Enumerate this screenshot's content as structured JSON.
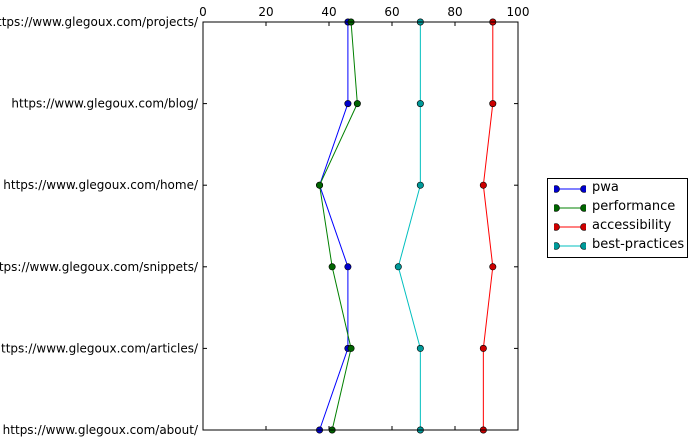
{
  "chart_data": {
    "type": "line",
    "title": "",
    "xlabel": "",
    "ylabel": "",
    "xlim": [
      0,
      100
    ],
    "x_ticks": [
      0,
      20,
      40,
      60,
      80,
      100
    ],
    "x_axis_position": "top",
    "grid": false,
    "legend_placement": "outside-right",
    "categories": [
      "https://www.glegoux.com/projects/",
      "https://www.glegoux.com/blog/",
      "https://www.glegoux.com/home/",
      "https://www.glegoux.com/snippets/",
      "https://www.glegoux.com/articles/",
      "https://www.glegoux.com/about/"
    ],
    "series": [
      {
        "name": "pwa",
        "color": "#0000ff",
        "marker_color": "#0000cc",
        "values": [
          46,
          46,
          37,
          46,
          46,
          37
        ]
      },
      {
        "name": "performance",
        "color": "#008000",
        "marker_color": "#006400",
        "values": [
          47,
          49,
          37,
          41,
          47,
          41
        ]
      },
      {
        "name": "accessibility",
        "color": "#ff0000",
        "marker_color": "#cc0000",
        "values": [
          92,
          92,
          89,
          92,
          89,
          89
        ]
      },
      {
        "name": "best-practices",
        "color": "#00bfbf",
        "marker_color": "#009999",
        "values": [
          69,
          69,
          69,
          62,
          69,
          69
        ]
      }
    ]
  }
}
